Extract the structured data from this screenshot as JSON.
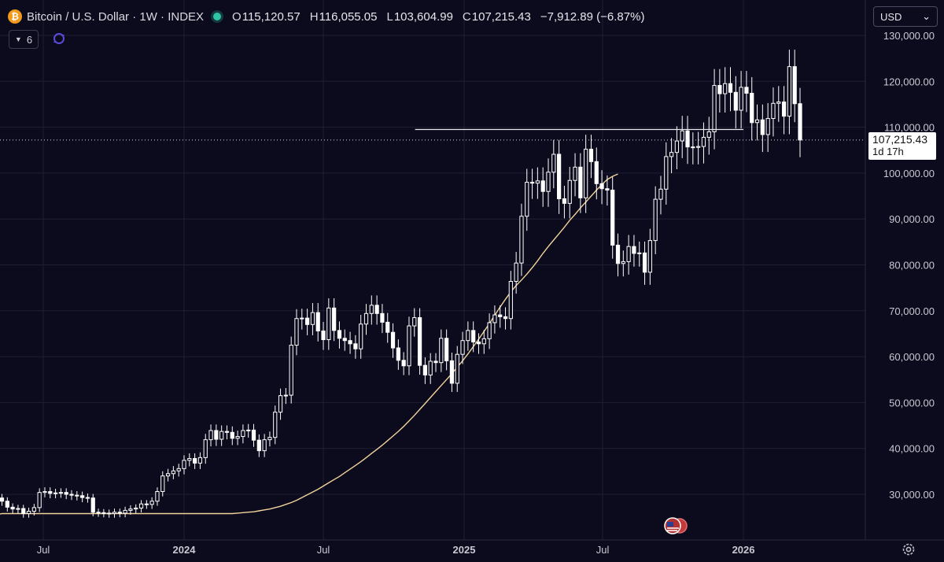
{
  "header": {
    "coin_symbol": "₿",
    "title": "Bitcoin / U.S. Dollar · 1W · INDEX",
    "open_label": "O",
    "open": "115,120.57",
    "high_label": "H",
    "high": "116,055.05",
    "low_label": "L",
    "low": "103,604.99",
    "close_label": "C",
    "close": "107,215.43",
    "change": "−7,912.89 (−6.87%)"
  },
  "toolbar": {
    "indicator_count": "6",
    "currency": "USD",
    "currency_chevron": "⌄"
  },
  "price_tag": {
    "price": "107,215.43",
    "countdown": "1d 17h"
  },
  "colors": {
    "background": "#0b0b1d",
    "candle": "#ffffff",
    "ma": "#f2d39b",
    "grid": "#1f1f34",
    "live_dot": "#2ec4a4",
    "coin": "#f29a1c"
  },
  "chart_data": {
    "type": "candlestick",
    "interval": "1W",
    "grid": true,
    "ylim": [
      22000,
      134000
    ],
    "y_ticks": [
      30000,
      40000,
      50000,
      60000,
      70000,
      80000,
      90000,
      100000,
      110000,
      120000,
      130000
    ],
    "y_tick_labels": [
      "30,000.00",
      "40,000.00",
      "50,000.00",
      "60,000.00",
      "70,000.00",
      "80,000.00",
      "90,000.00",
      "100,000.00",
      "110,000.00",
      "120,000.00",
      "130,000.00"
    ],
    "x_tick_labels": [
      "Jul",
      "2024",
      "Jul",
      "2025",
      "Jul",
      "2026"
    ],
    "x_tick_dates": [
      "2023-07-01",
      "2024-01-01",
      "2024-07-01",
      "2025-01-01",
      "2025-07-01",
      "2026-01-01"
    ],
    "first_week": "2023-05-08",
    "horizontal_line": {
      "value": 109500,
      "from": "2024-12-09",
      "to": "2026-01-01"
    },
    "current_price_line": 107215.43,
    "closes": [
      28500,
      27200,
      26800,
      26900,
      25800,
      26300,
      27100,
      30400,
      30600,
      30200,
      30300,
      30400,
      30000,
      29800,
      29700,
      29300,
      29200,
      26100,
      26000,
      25900,
      25800,
      26100,
      25900,
      26500,
      26800,
      27000,
      27900,
      27800,
      28500,
      30600,
      34000,
      34500,
      35100,
      35600,
      37400,
      37800,
      36800,
      38000,
      41900,
      43900,
      42000,
      43700,
      43500,
      42200,
      42600,
      43900,
      44000,
      41800,
      39500,
      41900,
      42400,
      47900,
      51500,
      51600,
      62500,
      68300,
      68400,
      67000,
      69600,
      65600,
      63700,
      70600,
      65700,
      64000,
      63500,
      62800,
      61700,
      67100,
      69400,
      71200,
      69400,
      67500,
      65300,
      61900,
      59200,
      58000,
      66700,
      68500,
      58100,
      56000,
      59000,
      58700,
      64000,
      59100,
      54200,
      60500,
      63500,
      65700,
      63200,
      62800,
      63900,
      67400,
      69100,
      68700,
      68300,
      76400,
      80400,
      90600,
      98000,
      97800,
      98300,
      96000,
      100200,
      104100,
      94400,
      93400,
      98400,
      101300,
      94600,
      105200,
      102500,
      97700,
      96600,
      96300,
      84300,
      80300,
      80700,
      84000,
      82500,
      82600,
      78400,
      85300,
      94300,
      96500,
      103600,
      104500,
      107000,
      109200,
      105700,
      105600,
      105800,
      107800,
      109000,
      119100,
      117300,
      119500,
      117600,
      113700,
      118700,
      117400,
      111000,
      111600,
      108400,
      111900,
      115200,
      115500,
      112400,
      123200,
      115120,
      107215
    ],
    "ma_length": 50,
    "ma_values": [
      25800,
      25900,
      26000,
      26100,
      26200,
      26400,
      26600,
      26800,
      27100,
      27400,
      27800,
      28200,
      28700,
      29300,
      29900,
      30500,
      31100,
      31800,
      32500,
      33200,
      33900,
      34700,
      35500,
      36300,
      37100,
      38000,
      38900,
      39800,
      40700,
      41700,
      42700,
      43700,
      44800,
      46000,
      47200,
      48500,
      49800,
      51100,
      52400,
      53700,
      55000,
      56300,
      57700,
      59100,
      60600,
      62200,
      63800,
      65500,
      67200,
      69000,
      70800,
      72500,
      74100,
      75500,
      76700,
      78000,
      79400,
      80900,
      82500,
      84000,
      85400,
      86800,
      88200,
      89700,
      91000,
      92400,
      93700,
      95000,
      96300,
      97500,
      98600,
      99300,
      99800
    ],
    "ma_first_week": "2024-03-04"
  }
}
